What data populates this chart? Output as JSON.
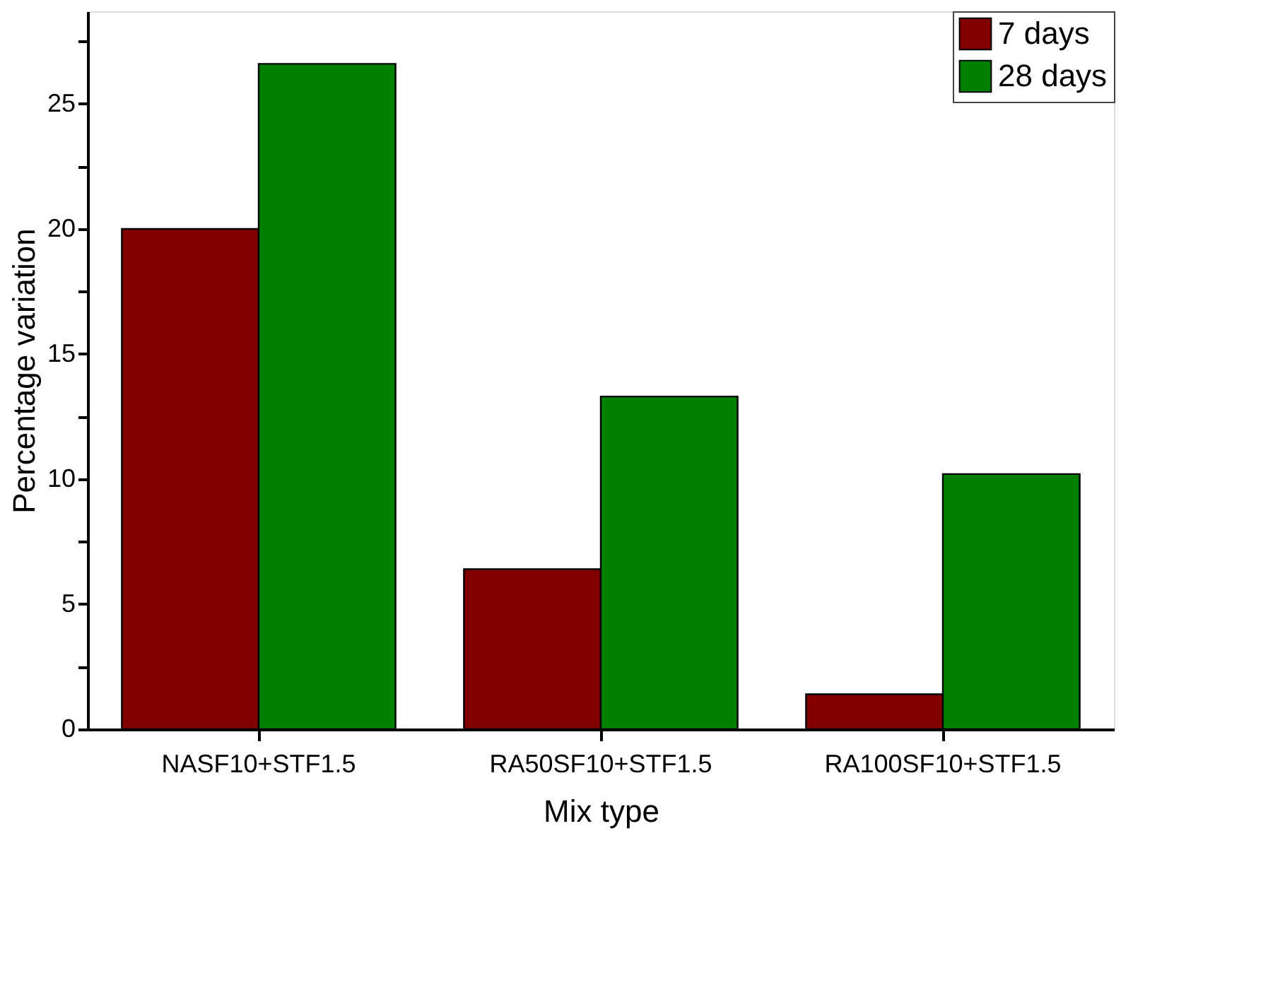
{
  "chart_data": {
    "type": "bar",
    "xlabel": "Mix type",
    "ylabel": "Percentage variation",
    "categories": [
      "NASF10+STF1.5",
      "RA50SF10+STF1.5",
      "RA100SF10+STF1.5"
    ],
    "series": [
      {
        "name": "7 days",
        "color": "#800000",
        "values": [
          20.0,
          6.4,
          1.4
        ]
      },
      {
        "name": "28 days",
        "color": "#008000",
        "values": [
          26.6,
          13.3,
          10.2
        ]
      }
    ],
    "ylim": [
      0,
      28.7
    ],
    "yticks": [
      0,
      {
        "value": 2.5,
        "label": null
      },
      5,
      {
        "value": 7.5,
        "label": null
      },
      10,
      {
        "value": 12.5,
        "label": null
      },
      15,
      {
        "value": 17.5,
        "label": null
      },
      20,
      {
        "value": 22.5,
        "label": null
      },
      25,
      {
        "value": 27.5,
        "label": null
      }
    ],
    "grid": false,
    "legend": "top right"
  }
}
